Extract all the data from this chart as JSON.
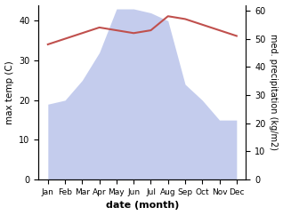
{
  "months": [
    "Jan",
    "Feb",
    "Mar",
    "Apr",
    "May",
    "Jun",
    "Jul",
    "Aug",
    "Sep",
    "Oct",
    "Nov",
    "Dec"
  ],
  "precipitation": [
    19,
    20,
    25,
    32,
    43,
    43,
    42,
    40,
    24,
    20,
    15,
    15
  ],
  "temperature": [
    48,
    50,
    52,
    54,
    53,
    52,
    53,
    58,
    57,
    55,
    53,
    51
  ],
  "precip_color": "#b0bce8",
  "temp_color": "#c0504d",
  "left_ylabel": "max temp (C)",
  "right_ylabel": "med. precipitation (kg/m2)",
  "xlabel": "date (month)",
  "ylim_left": [
    0,
    44
  ],
  "ylim_right": [
    0,
    62
  ],
  "yticks_left": [
    0,
    10,
    20,
    30,
    40
  ],
  "yticks_right": [
    0,
    10,
    20,
    30,
    40,
    50,
    60
  ],
  "bg_color": "#ffffff"
}
